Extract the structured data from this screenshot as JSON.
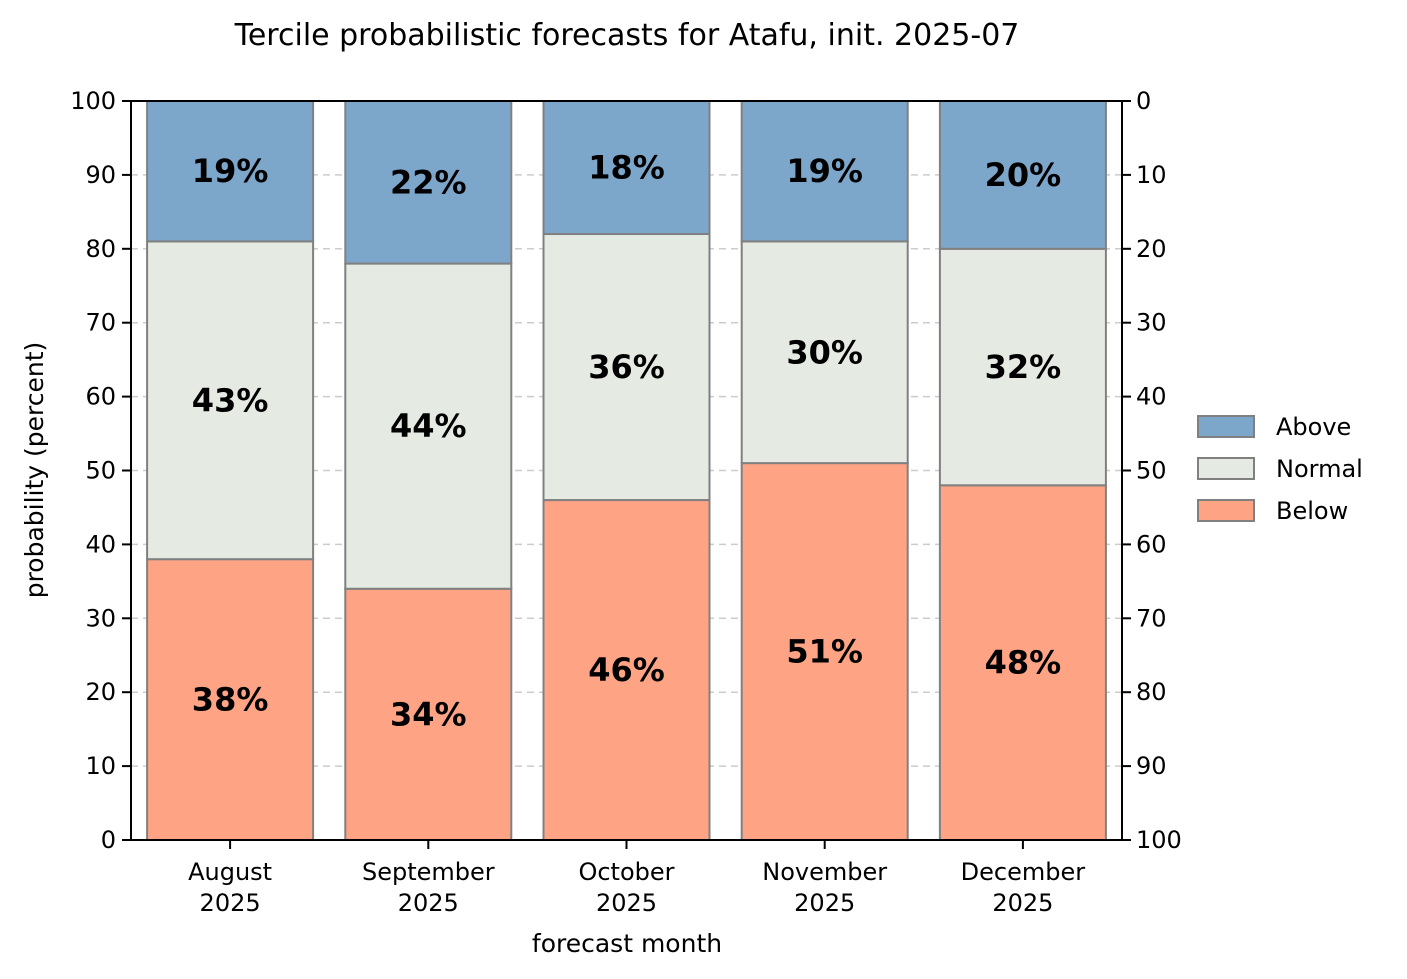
{
  "chart_data": {
    "type": "bar",
    "stacked": true,
    "title": "Tercile probabilistic forecasts for Atafu, init. 2025-07",
    "xlabel": "forecast month",
    "ylabel": "probability (percent)",
    "ylim": [
      0,
      100
    ],
    "yticks": [
      "0",
      "10",
      "20",
      "30",
      "40",
      "50",
      "60",
      "70",
      "80",
      "90",
      "100"
    ],
    "y2ticks": [
      "100",
      "90",
      "80",
      "70",
      "60",
      "50",
      "40",
      "30",
      "20",
      "10",
      "0"
    ],
    "grid": "horizontal dashed",
    "legend_position": "right",
    "categories": [
      [
        "August",
        "2025"
      ],
      [
        "September",
        "2025"
      ],
      [
        "October",
        "2025"
      ],
      [
        "November",
        "2025"
      ],
      [
        "December",
        "2025"
      ]
    ],
    "series": [
      {
        "name": "Below",
        "color": "#FFA385",
        "values": [
          38,
          34,
          46,
          51,
          48
        ],
        "labels": [
          "38%",
          "34%",
          "46%",
          "51%",
          "48%"
        ]
      },
      {
        "name": "Normal",
        "color": "#E5EBE3",
        "values": [
          43,
          44,
          36,
          30,
          32
        ],
        "labels": [
          "43%",
          "44%",
          "36%",
          "30%",
          "32%"
        ]
      },
      {
        "name": "Above",
        "color": "#7DA6CB",
        "values": [
          19,
          22,
          18,
          19,
          20
        ],
        "labels": [
          "19%",
          "22%",
          "18%",
          "19%",
          "20%"
        ]
      }
    ],
    "legend_order": [
      "Above",
      "Normal",
      "Below"
    ],
    "bar_edge_color": "#808080"
  }
}
